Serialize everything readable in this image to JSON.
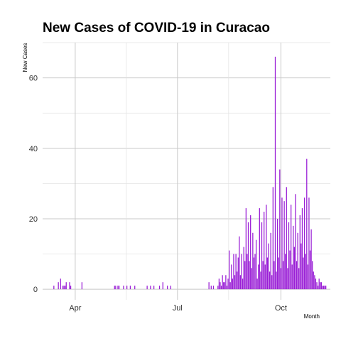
{
  "chart_data": {
    "type": "bar",
    "title": "New Cases of COVID-19 in Curacao",
    "xlabel": "Month",
    "ylabel": "New  Cases",
    "x_tick_labels": [
      "Apr",
      "Jul",
      "Oct"
    ],
    "x_tick_dates": [
      "2020-04-01",
      "2020-07-01",
      "2020-10-01"
    ],
    "xlim": [
      "2020-03-03",
      "2020-11-14"
    ],
    "y_ticks": [
      0,
      20,
      40,
      60
    ],
    "ylim": [
      -3,
      70
    ],
    "grid": true,
    "legend": "none",
    "bar_color": "#9a1fd6",
    "dates": [
      "2020-03-13",
      "2020-03-17",
      "2020-03-19",
      "2020-03-21",
      "2020-03-22",
      "2020-03-23",
      "2020-03-24",
      "2020-03-27",
      "2020-03-28",
      "2020-04-07",
      "2020-05-06",
      "2020-05-07",
      "2020-05-09",
      "2020-05-10",
      "2020-05-14",
      "2020-05-17",
      "2020-05-20",
      "2020-05-24",
      "2020-06-04",
      "2020-06-07",
      "2020-06-10",
      "2020-06-15",
      "2020-06-18",
      "2020-06-22",
      "2020-06-25",
      "2020-07-29",
      "2020-07-31",
      "2020-08-02",
      "2020-08-06",
      "2020-08-07",
      "2020-08-08",
      "2020-08-09",
      "2020-08-10",
      "2020-08-11",
      "2020-08-12",
      "2020-08-13",
      "2020-08-14",
      "2020-08-15",
      "2020-08-16",
      "2020-08-17",
      "2020-08-18",
      "2020-08-19",
      "2020-08-20",
      "2020-08-21",
      "2020-08-22",
      "2020-08-23",
      "2020-08-24",
      "2020-08-25",
      "2020-08-26",
      "2020-08-27",
      "2020-08-28",
      "2020-08-29",
      "2020-08-30",
      "2020-08-31",
      "2020-09-01",
      "2020-09-02",
      "2020-09-03",
      "2020-09-04",
      "2020-09-05",
      "2020-09-06",
      "2020-09-07",
      "2020-09-08",
      "2020-09-09",
      "2020-09-10",
      "2020-09-11",
      "2020-09-12",
      "2020-09-13",
      "2020-09-14",
      "2020-09-15",
      "2020-09-16",
      "2020-09-17",
      "2020-09-18",
      "2020-09-19",
      "2020-09-20",
      "2020-09-21",
      "2020-09-22",
      "2020-09-23",
      "2020-09-24",
      "2020-09-25",
      "2020-09-26",
      "2020-09-27",
      "2020-09-28",
      "2020-09-29",
      "2020-09-30",
      "2020-10-01",
      "2020-10-02",
      "2020-10-03",
      "2020-10-04",
      "2020-10-05",
      "2020-10-06",
      "2020-10-07",
      "2020-10-08",
      "2020-10-09",
      "2020-10-10",
      "2020-10-11",
      "2020-10-12",
      "2020-10-13",
      "2020-10-14",
      "2020-10-15",
      "2020-10-16",
      "2020-10-17",
      "2020-10-18",
      "2020-10-19",
      "2020-10-20",
      "2020-10-21",
      "2020-10-22",
      "2020-10-23",
      "2020-10-24",
      "2020-10-25",
      "2020-10-26",
      "2020-10-27",
      "2020-10-28",
      "2020-10-29",
      "2020-10-30",
      "2020-10-31",
      "2020-11-01",
      "2020-11-02",
      "2020-11-03",
      "2020-11-04",
      "2020-11-05",
      "2020-11-06",
      "2020-11-07",
      "2020-11-08",
      "2020-11-09",
      "2020-11-10"
    ],
    "values": [
      1,
      2,
      3,
      1,
      1,
      1,
      2,
      2,
      1,
      2,
      1,
      1,
      1,
      1,
      1,
      1,
      1,
      1,
      1,
      1,
      1,
      1,
      2,
      1,
      1,
      2,
      1,
      1,
      1,
      3,
      2,
      1,
      4,
      2,
      2,
      4,
      1,
      3,
      11,
      2,
      7,
      3,
      10,
      4,
      10,
      5,
      9,
      15,
      4,
      10,
      3,
      12,
      8,
      23,
      10,
      19,
      8,
      21,
      6,
      16,
      9,
      10,
      14,
      3,
      7,
      23,
      5,
      19,
      8,
      22,
      7,
      24,
      9,
      13,
      5,
      16,
      4,
      29,
      8,
      66,
      5,
      20,
      9,
      34,
      6,
      26,
      8,
      25,
      10,
      29,
      6,
      19,
      11,
      24,
      7,
      18,
      12,
      27,
      8,
      16,
      6,
      21,
      13,
      23,
      9,
      26,
      10,
      37,
      7,
      26,
      11,
      17,
      8,
      5,
      4,
      3,
      2,
      1,
      3,
      2,
      2,
      1,
      1,
      1,
      1
    ]
  }
}
